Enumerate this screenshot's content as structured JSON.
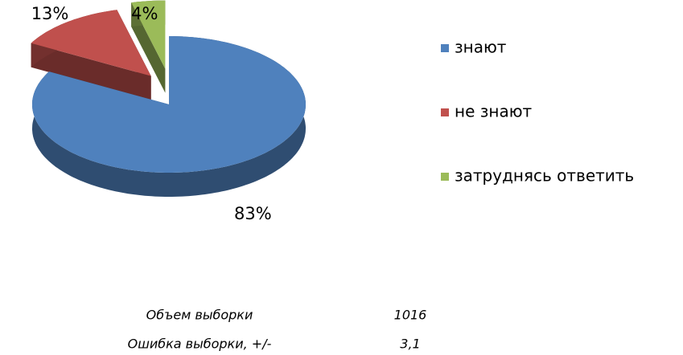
{
  "chart_data": {
    "type": "pie",
    "categories": [
      "знают",
      "не знают",
      "затруднясь ответить"
    ],
    "values": [
      83,
      13,
      4
    ],
    "value_labels": [
      "83%",
      "13%",
      "4%"
    ],
    "colors": [
      "#4f81bd",
      "#c0504d",
      "#9bbb59"
    ],
    "legend": "right"
  },
  "notes": {
    "rows": [
      [
        "Объем выборки",
        1016
      ],
      [
        "Ошибка выборки, +/-",
        "3,1"
      ]
    ]
  }
}
